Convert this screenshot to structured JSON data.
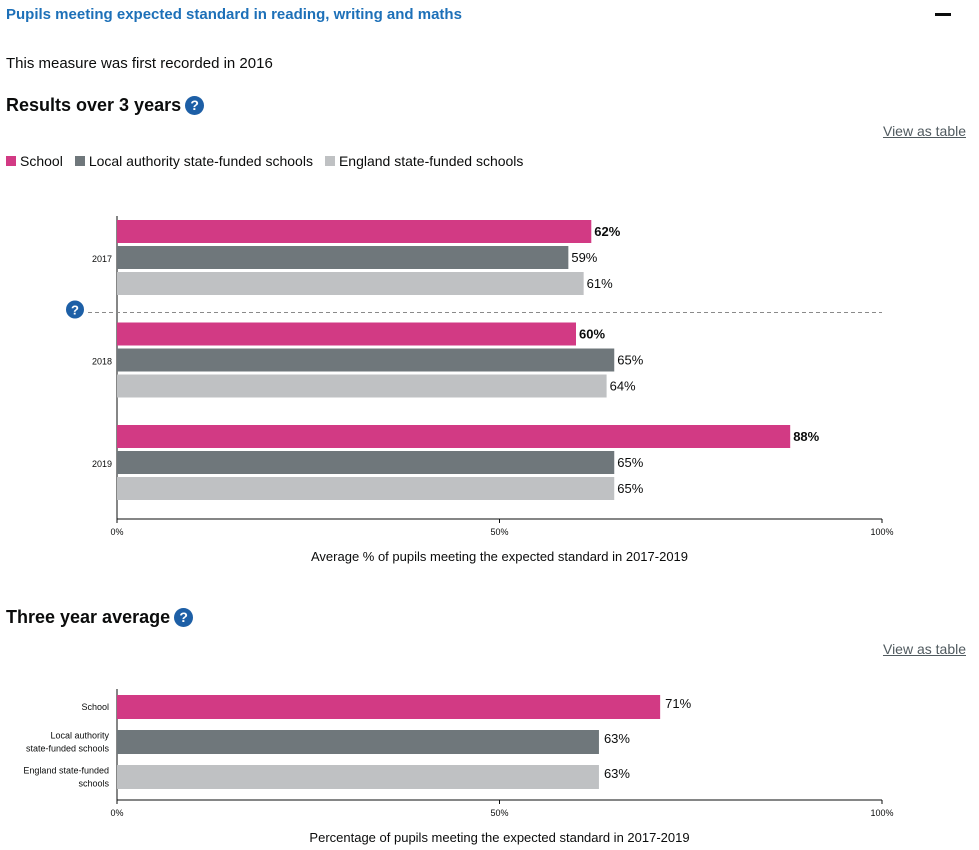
{
  "header": {
    "title": "Pupils meeting expected standard in reading, writing and maths"
  },
  "intro": "This measure was first recorded in 2016",
  "colors": {
    "school": "#d23a84",
    "la": "#6f777b",
    "england": "#bfc1c3",
    "link": "#1d70b8"
  },
  "results": {
    "heading": "Results over 3 years",
    "view_table": "View as table",
    "legend": [
      "School",
      "Local authority state-funded schools",
      "England state-funded schools"
    ],
    "caption": "Average % of pupils meeting the expected standard in 2017-2019"
  },
  "average": {
    "heading": "Three year average",
    "view_table": "View as table",
    "caption": "Percentage of pupils meeting the expected standard in 2017-2019"
  },
  "chart_data": [
    {
      "type": "bar",
      "orientation": "horizontal",
      "categories": [
        "2017",
        "2018",
        "2019"
      ],
      "series": [
        {
          "name": "School",
          "values": [
            62,
            60,
            88
          ],
          "labels": [
            "62%",
            "60%",
            "88%"
          ]
        },
        {
          "name": "Local authority state-funded schools",
          "values": [
            59,
            65,
            65
          ],
          "labels": [
            "59%",
            "65%",
            "65%"
          ]
        },
        {
          "name": "England state-funded schools",
          "values": [
            61,
            64,
            65
          ],
          "labels": [
            "61%",
            "64%",
            "65%"
          ]
        }
      ],
      "xlim": [
        0,
        100
      ],
      "x_ticks": [
        "0%",
        "50%",
        "100%"
      ],
      "xlabel": "Average % of pupils meeting the expected standard in 2017-2019",
      "legend_position": "top-left"
    },
    {
      "type": "bar",
      "orientation": "horizontal",
      "categories": [
        [
          "School"
        ],
        [
          "Local authority",
          "state-funded schools"
        ],
        [
          "England state-funded",
          "schools"
        ]
      ],
      "values": [
        71,
        63,
        63
      ],
      "labels": [
        "71%",
        "63%",
        "63%"
      ],
      "xlim": [
        0,
        100
      ],
      "x_ticks": [
        "0%",
        "50%",
        "100%"
      ],
      "xlabel": "Percentage of pupils meeting the expected standard in 2017-2019"
    }
  ]
}
